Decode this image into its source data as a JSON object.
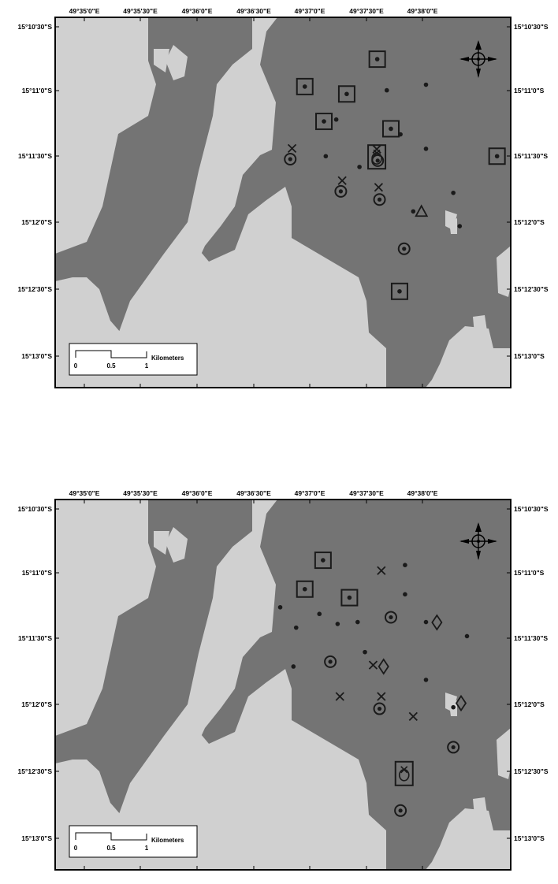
{
  "colors": {
    "forest": "#747474",
    "open": "#d0d0d0",
    "frame": "#000000",
    "marker": "#1a1a1a",
    "background": "#ffffff"
  },
  "maps": [
    {
      "id": "top",
      "x_ticks": [
        "49°35'0\"E",
        "49°35'30\"E",
        "49°36'0\"E",
        "49°36'30\"E",
        "49°37'0\"E",
        "49°37'30\"E",
        "49°38'0\"E"
      ],
      "y_ticks": [
        "15°10'30\"S",
        "15°11'0\"S",
        "15°11'30\"S",
        "15°12'0\"S",
        "15°12'30\"S",
        "15°13'0\"S"
      ],
      "scale": {
        "labels": [
          "0",
          "0.5",
          "1"
        ],
        "unit": "Kilometers"
      },
      "north_arrow": "compass-rose-icon",
      "dots": [
        {
          "x": 0.728,
          "y": 0.197
        },
        {
          "x": 0.668,
          "y": 0.404
        },
        {
          "x": 0.617,
          "y": 0.276
        },
        {
          "x": 0.758,
          "y": 0.316
        },
        {
          "x": 0.814,
          "y": 0.355
        },
        {
          "x": 0.814,
          "y": 0.182
        },
        {
          "x": 0.874,
          "y": 0.474
        },
        {
          "x": 0.786,
          "y": 0.524
        },
        {
          "x": 0.888,
          "y": 0.564
        },
        {
          "x": 0.594,
          "y": 0.375
        }
      ],
      "squares": [
        {
          "x": 0.548,
          "y": 0.187
        },
        {
          "x": 0.64,
          "y": 0.207
        },
        {
          "x": 0.59,
          "y": 0.281
        },
        {
          "x": 0.707,
          "y": 0.113
        },
        {
          "x": 0.737,
          "y": 0.301
        },
        {
          "x": 0.97,
          "y": 0.375
        },
        {
          "x": 0.756,
          "y": 0.74
        }
      ],
      "circles": [
        {
          "x": 0.516,
          "y": 0.383
        },
        {
          "x": 0.627,
          "y": 0.47
        },
        {
          "x": 0.712,
          "y": 0.492
        },
        {
          "x": 0.708,
          "y": 0.387
        },
        {
          "x": 0.766,
          "y": 0.625
        }
      ],
      "crosses": [
        {
          "x": 0.52,
          "y": 0.354
        },
        {
          "x": 0.63,
          "y": 0.441
        },
        {
          "x": 0.71,
          "y": 0.459
        },
        {
          "x": 0.706,
          "y": 0.356
        }
      ],
      "tall_squares": [
        {
          "x": 0.706,
          "y": 0.377
        }
      ],
      "triangles": [
        {
          "x": 0.804,
          "y": 0.524
        }
      ],
      "diamonds": []
    },
    {
      "id": "bottom",
      "x_ticks": [
        "49°35'0\"E",
        "49°35'30\"E",
        "49°36'0\"E",
        "49°36'30\"E",
        "49°37'0\"E",
        "49°37'30\"E",
        "49°38'0\"E"
      ],
      "y_ticks": [
        "15°10'30\"S",
        "15°11'0\"S",
        "15°11'30\"S",
        "15°12'0\"S",
        "15°12'30\"S",
        "15°13'0\"S"
      ],
      "scale": {
        "labels": [
          "0",
          "0.5",
          "1"
        ],
        "unit": "Kilometers"
      },
      "north_arrow": "compass-rose-icon",
      "dots": [
        {
          "x": 0.494,
          "y": 0.291
        },
        {
          "x": 0.529,
          "y": 0.346
        },
        {
          "x": 0.58,
          "y": 0.309
        },
        {
          "x": 0.62,
          "y": 0.336
        },
        {
          "x": 0.664,
          "y": 0.331
        },
        {
          "x": 0.768,
          "y": 0.177
        },
        {
          "x": 0.768,
          "y": 0.256
        },
        {
          "x": 0.814,
          "y": 0.331
        },
        {
          "x": 0.904,
          "y": 0.369
        },
        {
          "x": 0.523,
          "y": 0.451
        },
        {
          "x": 0.814,
          "y": 0.487
        },
        {
          "x": 0.874,
          "y": 0.561
        },
        {
          "x": 0.68,
          "y": 0.412
        }
      ],
      "squares": [
        {
          "x": 0.588,
          "y": 0.164
        },
        {
          "x": 0.548,
          "y": 0.242
        },
        {
          "x": 0.646,
          "y": 0.265
        }
      ],
      "circles": [
        {
          "x": 0.737,
          "y": 0.318
        },
        {
          "x": 0.604,
          "y": 0.438
        },
        {
          "x": 0.712,
          "y": 0.565
        },
        {
          "x": 0.874,
          "y": 0.669
        },
        {
          "x": 0.758,
          "y": 0.84
        }
      ],
      "crosses": [
        {
          "x": 0.716,
          "y": 0.192
        },
        {
          "x": 0.698,
          "y": 0.447
        },
        {
          "x": 0.625,
          "y": 0.532
        },
        {
          "x": 0.716,
          "y": 0.532
        },
        {
          "x": 0.786,
          "y": 0.586
        }
      ],
      "tall_squares": [
        {
          "x": 0.766,
          "y": 0.74
        }
      ],
      "triangles": [],
      "diamonds": [
        {
          "x": 0.838,
          "y": 0.332
        },
        {
          "x": 0.721,
          "y": 0.451
        },
        {
          "x": 0.891,
          "y": 0.55
        }
      ]
    }
  ]
}
